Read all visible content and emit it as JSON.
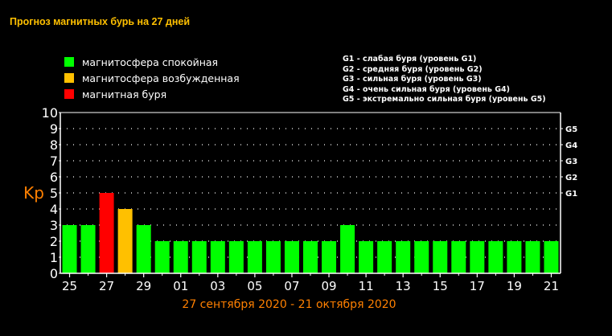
{
  "title": "Прогноз магнитных бурь на 27 дней",
  "legend": [
    {
      "label": "магнитосфера спокойная",
      "color": "#00ff00"
    },
    {
      "label": "магнитосфера возбужденная",
      "color": "#ffc000"
    },
    {
      "label": "магнитная буря",
      "color": "#ff0000"
    }
  ],
  "storm_levels": [
    "G1 - слабая буря (уровень G1)",
    "G2 - средняя буря (уровень G2)",
    "G3 - сильная буря (уровень G3)",
    "G4 - очень сильная буря (уровень G4)",
    "G5 - экстремально сильная буря (уровень G5)"
  ],
  "date_range": "27 сентября 2020 - 21 октября 2020",
  "chart_data": {
    "type": "bar",
    "ylabel": "Kp",
    "ylim": [
      0,
      10
    ],
    "yticks": [
      "0",
      "1",
      "2",
      "3",
      "4",
      "5",
      "6",
      "7",
      "8",
      "9",
      "10"
    ],
    "right_ticks": [
      {
        "label": "G1",
        "kp": 5
      },
      {
        "label": "G2",
        "kp": 6
      },
      {
        "label": "G3",
        "kp": 7
      },
      {
        "label": "G4",
        "kp": 8
      },
      {
        "label": "G5",
        "kp": 9
      }
    ],
    "xtick_labels": [
      "25",
      "27",
      "29",
      "01",
      "03",
      "05",
      "07",
      "09",
      "11",
      "13",
      "15",
      "17",
      "19",
      "21"
    ],
    "values": [
      3,
      3,
      5,
      4,
      3,
      2,
      2,
      2,
      2,
      2,
      2,
      2,
      2,
      2,
      2,
      3,
      2,
      2,
      2,
      2,
      2,
      2,
      2,
      2,
      2,
      2,
      2
    ],
    "levels": [
      "quiet",
      "quiet",
      "storm",
      "active",
      "quiet",
      "quiet",
      "quiet",
      "quiet",
      "quiet",
      "quiet",
      "quiet",
      "quiet",
      "quiet",
      "quiet",
      "quiet",
      "quiet",
      "quiet",
      "quiet",
      "quiet",
      "quiet",
      "quiet",
      "quiet",
      "quiet",
      "quiet",
      "quiet",
      "quiet",
      "quiet"
    ],
    "level_colors": {
      "quiet": "#00ff00",
      "active": "#ffc000",
      "storm": "#ff0000"
    },
    "grid": true,
    "ylabel_color": "#ff8000"
  }
}
